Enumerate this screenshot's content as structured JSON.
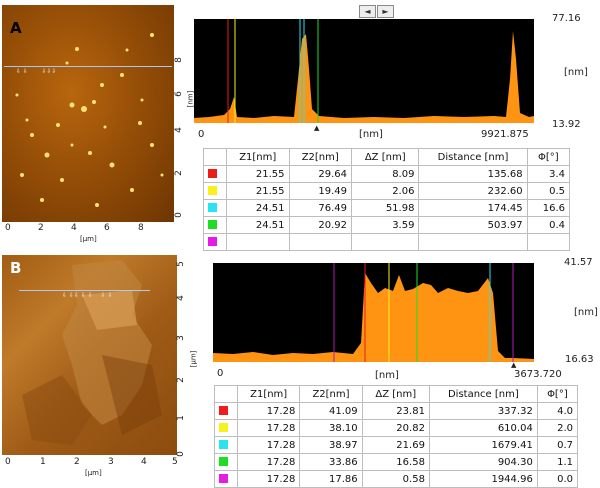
{
  "panel_a": {
    "letter": "A",
    "image_axis": {
      "y_ticks": [
        "8",
        "6",
        "4",
        "2",
        "0"
      ],
      "x_ticks": [
        "0",
        "2",
        "4",
        "6",
        "8"
      ],
      "unit_label": "[µm]"
    },
    "nav": {
      "left": "◄",
      "right": "►"
    },
    "profile": {
      "y_max": "77.16",
      "y_min": "13.92",
      "y_unit": "[nm]",
      "x_start": "0",
      "x_end": "9921.875",
      "x_unit": "[nm]",
      "left_unit": "[nm]"
    },
    "table": {
      "headers": [
        "Z1[nm]",
        "Z2[nm]",
        "ΔZ [nm]",
        "Distance [nm]",
        "Φ[°]"
      ],
      "rows": [
        {
          "color": "#ee1c1c",
          "z1": "21.55",
          "z2": "29.64",
          "dz": "8.09",
          "dist": "135.68",
          "phi": "3.4"
        },
        {
          "color": "#f7f21c",
          "z1": "21.55",
          "z2": "19.49",
          "dz": "2.06",
          "dist": "232.60",
          "phi": "0.5"
        },
        {
          "color": "#28e3f0",
          "z1": "24.51",
          "z2": "76.49",
          "dz": "51.98",
          "dist": "174.45",
          "phi": "16.6"
        },
        {
          "color": "#1fdc24",
          "z1": "24.51",
          "z2": "20.92",
          "dz": "3.59",
          "dist": "503.97",
          "phi": "0.4"
        },
        {
          "color": "#e61ce6",
          "z1": "",
          "z2": "",
          "dz": "",
          "dist": "",
          "phi": ""
        }
      ]
    }
  },
  "panel_b": {
    "letter": "B",
    "image_axis": {
      "y_ticks": [
        "5",
        "4",
        "3",
        "2",
        "1",
        "0"
      ],
      "x_ticks": [
        "0",
        "1",
        "2",
        "3",
        "4",
        "5"
      ],
      "unit_label": "[µm]",
      "right_unit": "[µm]"
    },
    "profile": {
      "y_max": "41.57",
      "y_min": "16.63",
      "y_unit": "[nm]",
      "x_start": "0",
      "x_end": "3673.720",
      "x_unit": "[nm]"
    },
    "table": {
      "headers": [
        "Z1[nm]",
        "Z2[nm]",
        "ΔZ [nm]",
        "Distance [nm]",
        "Φ[°]"
      ],
      "rows": [
        {
          "color": "#ee1c1c",
          "z1": "17.28",
          "z2": "41.09",
          "dz": "23.81",
          "dist": "337.32",
          "phi": "4.0"
        },
        {
          "color": "#f7f21c",
          "z1": "17.28",
          "z2": "38.10",
          "dz": "20.82",
          "dist": "610.04",
          "phi": "2.0"
        },
        {
          "color": "#28e3f0",
          "z1": "17.28",
          "z2": "38.97",
          "dz": "21.69",
          "dist": "1679.41",
          "phi": "0.7"
        },
        {
          "color": "#1fdc24",
          "z1": "17.28",
          "z2": "33.86",
          "dz": "16.58",
          "dist": "904.30",
          "phi": "1.1"
        },
        {
          "color": "#e61ce6",
          "z1": "17.28",
          "z2": "17.86",
          "dz": "0.58",
          "dist": "1944.96",
          "phi": "0.0"
        }
      ]
    }
  }
}
